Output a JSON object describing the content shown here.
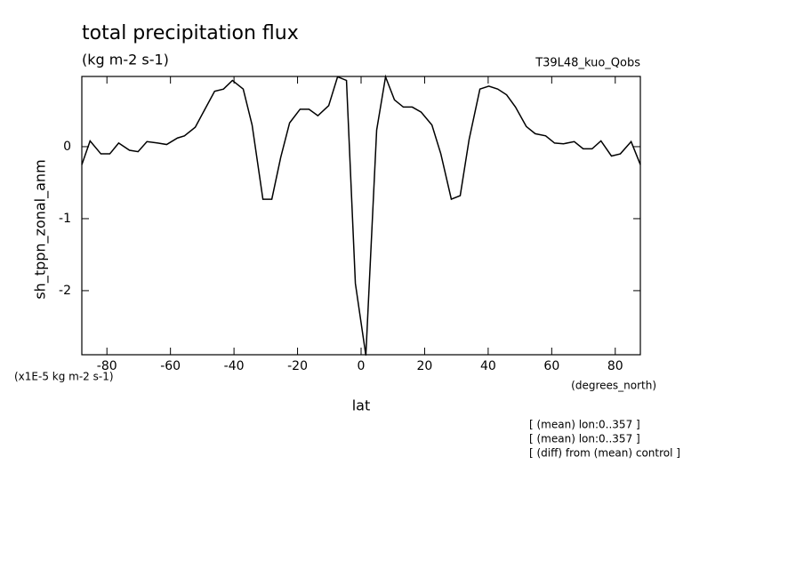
{
  "chart_data": {
    "type": "line",
    "title": "total precipitation flux",
    "subtitle": "(kg m-2 s-1)",
    "dataset": "T39L48_kuo_Qobs",
    "ylabel": "sh_tppn_zonal_anm",
    "yunits": "(x1E-5 kg m-2 s-1)",
    "xlabel": "lat",
    "xunits": "(degrees_north)",
    "notes": [
      "[ (mean) lon:0..357 ]",
      "[ (mean) lon:0..357 ]",
      "[ (diff) from (mean) control ]"
    ],
    "x": [
      -87.9,
      -85.3,
      -81.9,
      -79.1,
      -76.3,
      -72.9,
      -70.2,
      -67.4,
      -64.0,
      -61.2,
      -57.8,
      -55.6,
      -52.2,
      -49.4,
      -46.1,
      -43.3,
      -40.5,
      -37.1,
      -34.3,
      -30.9,
      -28.1,
      -25.3,
      -22.5,
      -19.2,
      -16.4,
      -13.6,
      -10.2,
      -7.4,
      -4.6,
      -1.8,
      1.5,
      4.9,
      7.7,
      10.5,
      13.3,
      16.1,
      18.9,
      22.3,
      25.1,
      28.4,
      31.2,
      34.0,
      37.4,
      40.2,
      43.0,
      45.8,
      48.6,
      52.0,
      54.8,
      58.1,
      60.9,
      63.7,
      67.1,
      69.9,
      72.7,
      75.5,
      78.8,
      81.6,
      85.0,
      87.9
    ],
    "series": [
      {
        "color": "#000000",
        "values": [
          -0.25,
          0.08,
          -0.1,
          -0.1,
          0.05,
          -0.05,
          -0.07,
          0.07,
          0.05,
          0.03,
          0.12,
          0.15,
          0.27,
          0.5,
          0.77,
          0.8,
          0.92,
          0.8,
          0.3,
          -0.73,
          -0.73,
          -0.15,
          0.33,
          0.52,
          0.52,
          0.43,
          0.57,
          0.97,
          0.92,
          -1.9,
          -2.9,
          0.23,
          0.97,
          0.65,
          0.55,
          0.55,
          0.48,
          0.3,
          -0.1,
          -0.73,
          -0.68,
          0.1,
          0.8,
          0.84,
          0.8,
          0.72,
          0.55,
          0.28,
          0.18,
          0.15,
          0.05,
          0.04,
          0.07,
          -0.03,
          -0.03,
          0.08,
          -0.13,
          -0.1,
          0.07,
          -0.25
        ]
      }
    ],
    "xlim": [
      -87.9,
      87.9
    ],
    "ylim": [
      -2.89,
      0.975
    ],
    "xticks": [
      -80,
      -60,
      -40,
      -20,
      0,
      20,
      40,
      60,
      80
    ],
    "yticks": [
      -2,
      -1,
      0
    ]
  }
}
